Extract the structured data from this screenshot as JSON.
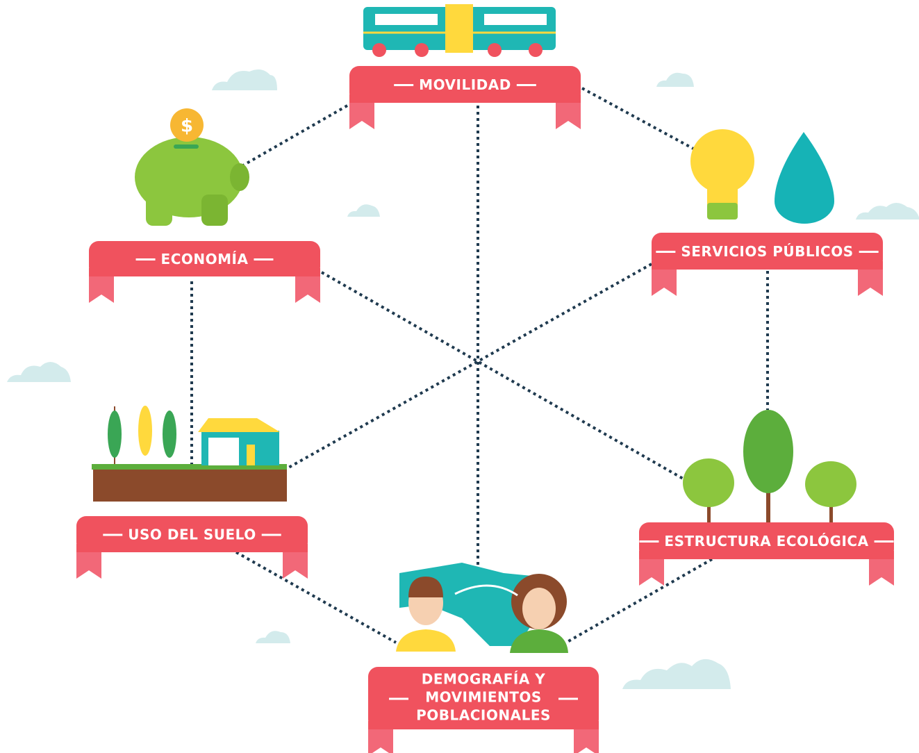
{
  "nodes": [
    {
      "label": "MOVILIDAD"
    },
    {
      "label": "ECONOMÍA"
    },
    {
      "label": "SERVICIOS PÚBLICOS"
    },
    {
      "label": "USO DEL SUELO"
    },
    {
      "label": "ESTRUCTURA ECOLÓGICA"
    },
    {
      "lines": [
        "DEMOGRAFÍA Y",
        "MOVIMIENTOS",
        "POBLACIONALES"
      ]
    }
  ]
}
